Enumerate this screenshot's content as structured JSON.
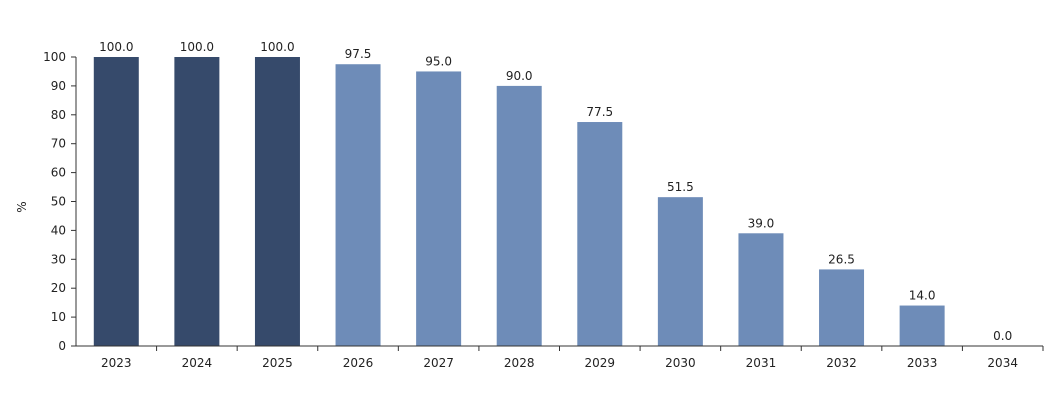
{
  "chart_data": {
    "type": "bar",
    "title": "",
    "xlabel": "",
    "ylabel": "%",
    "ylim": [
      0,
      100
    ],
    "yticks": [
      0,
      10,
      20,
      30,
      40,
      50,
      60,
      70,
      80,
      90,
      100
    ],
    "categories": [
      "2023",
      "2024",
      "2025",
      "2026",
      "2027",
      "2028",
      "2029",
      "2030",
      "2031",
      "2032",
      "2033",
      "2034"
    ],
    "values": [
      100.0,
      100.0,
      100.0,
      97.5,
      95.0,
      90.0,
      77.5,
      51.5,
      39.0,
      26.5,
      14.0,
      0.0
    ],
    "labels": [
      "100.0",
      "100.0",
      "100.0",
      "97.5",
      "95.0",
      "90.0",
      "77.5",
      "51.5",
      "39.0",
      "26.5",
      "14.0",
      "0.0"
    ],
    "bar_colors": [
      "#364a6b",
      "#364a6b",
      "#364a6b",
      "#6e8cb8",
      "#6e8cb8",
      "#6e8cb8",
      "#6e8cb8",
      "#6e8cb8",
      "#6e8cb8",
      "#6e8cb8",
      "#6e8cb8",
      "#6e8cb8"
    ],
    "grid": false,
    "legend": "none"
  }
}
